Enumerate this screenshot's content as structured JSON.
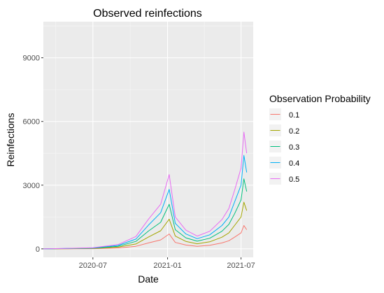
{
  "chart_data": {
    "type": "line",
    "title": "Observed reinfections",
    "xlabel": "Date",
    "ylabel": "Reinfections",
    "x_range": [
      "2020-03-01",
      "2021-07-31"
    ],
    "xlim": [
      "2020-03-01",
      "2021-07-31"
    ],
    "ylim": [
      -400,
      10700
    ],
    "x_ticks": [
      "2020-07-01",
      "2021-01-01",
      "2021-07-01"
    ],
    "x_tick_labels": [
      "2020-07",
      "2021-01",
      "2021-07"
    ],
    "y_ticks": [
      0,
      3000,
      6000,
      9000
    ],
    "y_tick_labels": [
      "0",
      "3000",
      "6000",
      "9000"
    ],
    "grid": true,
    "legend": {
      "title": "Observation Probability",
      "placement": "right",
      "entries": [
        "0.1",
        "0.2",
        "0.3",
        "0.4",
        "0.5"
      ]
    },
    "series": [
      {
        "name": "0.1",
        "color": "#F8766D",
        "x": [
          "2020-03-01",
          "2020-05-01",
          "2020-07-01",
          "2020-09-01",
          "2020-10-15",
          "2020-11-15",
          "2020-12-15",
          "2021-01-05",
          "2021-01-20",
          "2021-02-15",
          "2021-03-15",
          "2021-04-15",
          "2021-05-15",
          "2021-06-01",
          "2021-06-15",
          "2021-07-01",
          "2021-07-08",
          "2021-07-15"
        ],
        "values": [
          0,
          5,
          10,
          40,
          120,
          280,
          420,
          700,
          300,
          180,
          120,
          170,
          280,
          380,
          550,
          750,
          1100,
          900
        ]
      },
      {
        "name": "0.2",
        "color": "#A3A500",
        "x": [
          "2020-03-01",
          "2020-05-01",
          "2020-07-01",
          "2020-09-01",
          "2020-10-15",
          "2020-11-15",
          "2020-12-15",
          "2021-01-05",
          "2021-01-20",
          "2021-02-15",
          "2021-03-15",
          "2021-04-15",
          "2021-05-15",
          "2021-06-01",
          "2021-06-15",
          "2021-07-01",
          "2021-07-08",
          "2021-07-15"
        ],
        "values": [
          0,
          10,
          20,
          80,
          230,
          560,
          850,
          1400,
          600,
          350,
          240,
          330,
          550,
          750,
          1100,
          1500,
          2200,
          1800
        ]
      },
      {
        "name": "0.3",
        "color": "#00BF7D",
        "x": [
          "2020-03-01",
          "2020-05-01",
          "2020-07-01",
          "2020-09-01",
          "2020-10-15",
          "2020-11-15",
          "2020-12-15",
          "2021-01-05",
          "2021-01-20",
          "2021-02-15",
          "2021-03-15",
          "2021-04-15",
          "2021-05-15",
          "2021-06-01",
          "2021-06-15",
          "2021-07-01",
          "2021-07-08",
          "2021-07-15"
        ],
        "values": [
          0,
          15,
          30,
          120,
          350,
          840,
          1250,
          2100,
          900,
          520,
          360,
          500,
          830,
          1150,
          1650,
          2300,
          3300,
          2700
        ]
      },
      {
        "name": "0.4",
        "color": "#00B0F6",
        "x": [
          "2020-03-01",
          "2020-05-01",
          "2020-07-01",
          "2020-09-01",
          "2020-10-15",
          "2020-11-15",
          "2020-12-15",
          "2021-01-05",
          "2021-01-20",
          "2021-02-15",
          "2021-03-15",
          "2021-04-15",
          "2021-05-15",
          "2021-06-01",
          "2021-06-15",
          "2021-07-01",
          "2021-07-08",
          "2021-07-15"
        ],
        "values": [
          0,
          20,
          40,
          160,
          460,
          1120,
          1700,
          2800,
          1200,
          700,
          480,
          660,
          1100,
          1500,
          2200,
          3000,
          4400,
          3600
        ]
      },
      {
        "name": "0.5",
        "color": "#E76BF3",
        "x": [
          "2020-03-01",
          "2020-05-01",
          "2020-07-01",
          "2020-09-01",
          "2020-10-15",
          "2020-11-15",
          "2020-12-15",
          "2021-01-05",
          "2021-01-20",
          "2021-02-15",
          "2021-03-15",
          "2021-04-15",
          "2021-05-15",
          "2021-06-01",
          "2021-06-15",
          "2021-07-01",
          "2021-07-08",
          "2021-07-15"
        ],
        "values": [
          0,
          25,
          50,
          200,
          580,
          1400,
          2100,
          3500,
          1500,
          880,
          600,
          830,
          1380,
          1900,
          2750,
          3800,
          5500,
          4500
        ]
      }
    ]
  }
}
